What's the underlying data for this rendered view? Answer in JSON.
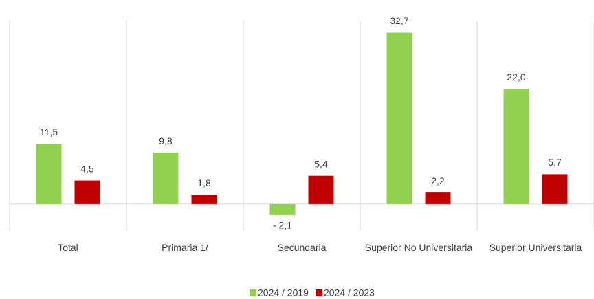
{
  "chart_data": {
    "type": "bar",
    "categories": [
      "Total",
      "Primaria 1/",
      "Secundaria",
      "Superior No Universitaria",
      "Superior Universitaria"
    ],
    "series": [
      {
        "name": "2024 / 2019",
        "color": "#92d050",
        "values": [
          11.5,
          9.8,
          -2.1,
          32.7,
          22.0
        ],
        "value_labels": [
          "11,5",
          "9,8",
          "- 2,1",
          "32,7",
          "22,0"
        ]
      },
      {
        "name": "2024 / 2023",
        "color": "#c00000",
        "values": [
          4.5,
          1.8,
          5.4,
          2.2,
          5.7
        ],
        "value_labels": [
          "4,5",
          "1,8",
          "5,4",
          "2,2",
          "5,7"
        ]
      }
    ],
    "ylim": [
      -5,
      35
    ],
    "legend": "bottom"
  }
}
